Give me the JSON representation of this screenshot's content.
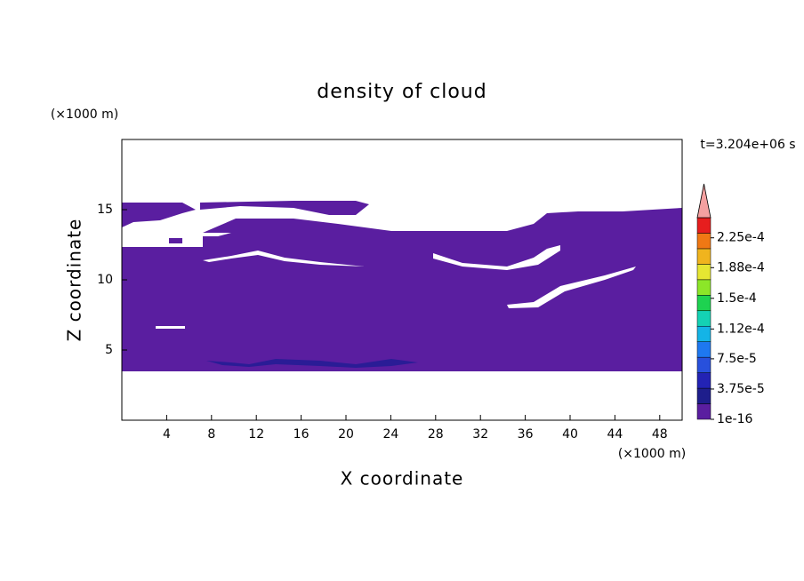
{
  "chart_data": {
    "type": "contour",
    "title": "density of cloud",
    "x_label": "X coordinate",
    "y_label": "Z coordinate",
    "x_unit": "(×1000 m)",
    "y_unit": "(×1000 m)",
    "time_label": "t=3.204e+06 s",
    "xlim": [
      0,
      50
    ],
    "ylim": [
      0,
      20
    ],
    "xticks": [
      4,
      8,
      12,
      16,
      20,
      24,
      28,
      32,
      36,
      40,
      44,
      48
    ],
    "yticks": [
      5,
      10,
      15
    ],
    "fill_color": "#5a1ea0",
    "detail_color": "#2a1c96",
    "colorbar": {
      "clim": [
        0,
        0.00025
      ],
      "colors": [
        "#5a1ea0",
        "#1e1e8c",
        "#2323b4",
        "#2850dc",
        "#1e78f0",
        "#14b4e6",
        "#14d2b4",
        "#1ed250",
        "#8ce628",
        "#e6e632",
        "#f0b41e",
        "#f07814",
        "#e61e1e"
      ],
      "extend_color": "#f4a0a0",
      "ticks": [
        {
          "value": 1e-16,
          "label": "1e-16"
        },
        {
          "value": 3.75e-05,
          "label": "3.75e-5"
        },
        {
          "value": 7.5e-05,
          "label": "7.5e-5"
        },
        {
          "value": 0.000112,
          "label": "1.12e-4"
        },
        {
          "value": 0.00015,
          "label": "1.5e-4"
        },
        {
          "value": 0.000188,
          "label": "1.88e-4"
        },
        {
          "value": 0.000225,
          "label": "2.25e-4"
        }
      ]
    }
  }
}
